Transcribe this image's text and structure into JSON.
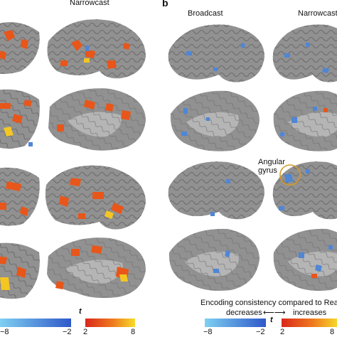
{
  "panel_b_label": "b",
  "left_panel": {
    "column_header": "Narrowcast"
  },
  "right_panel": {
    "column_headers": [
      "Broadcast",
      "Narrowcast"
    ],
    "annotation": "Angular\ngyrus",
    "legend_title": "Encoding consistency compared to Read",
    "legend_decreases": "decreases",
    "legend_increases": "increases",
    "legend_arrow": "⟵⟶"
  },
  "colorbar_left": {
    "stat_label": "t",
    "blue_ticks": [
      "−8",
      "−2"
    ],
    "orange_ticks": [
      "2",
      "8"
    ]
  },
  "colorbar_right": {
    "stat_label": "t",
    "blue_ticks": [
      "−8",
      "−2"
    ],
    "orange_ticks": [
      "2",
      "8"
    ]
  },
  "colors": {
    "brain_surface": "#8e8e8e",
    "sulci": "#6a6a6a",
    "orange_activation": "#e8561a",
    "yellow_activation": "#f3c623",
    "blue_activation": "#4f86d6",
    "circle": "#d49a2a"
  }
}
